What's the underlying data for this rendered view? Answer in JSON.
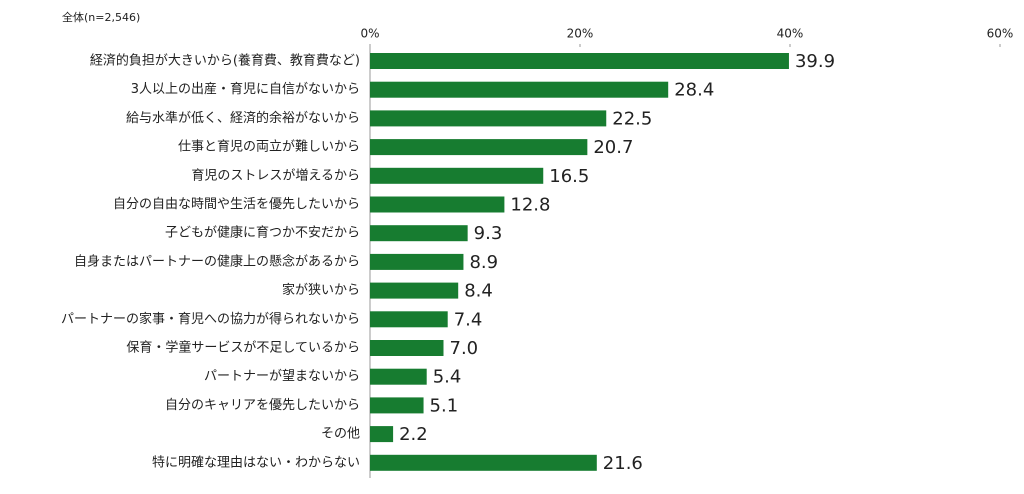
{
  "chart_data": {
    "type": "barh",
    "subtitle": "全体(n=2,546)",
    "categories": [
      "経済的負担が大きいから(養育費、教育費など)",
      "3人以上の出産・育児に自信がないから",
      "給与水準が低く、経済的余裕がないから",
      "仕事と育児の両立が難しいから",
      "育児のストレスが増えるから",
      "自分の自由な時間や生活を優先したいから",
      "子どもが健康に育つか不安だから",
      "自身またはパートナーの健康上の懸念があるから",
      "家が狭いから",
      "パートナーの家事・育児への協力が得られないから",
      "保育・学童サービスが不足しているから",
      "パートナーが望まないから",
      "自分のキャリアを優先したいから",
      "その他",
      "特に明確な理由はない・わからない"
    ],
    "values": [
      39.9,
      28.4,
      22.5,
      20.7,
      16.5,
      12.8,
      9.3,
      8.9,
      8.4,
      7.4,
      7.0,
      5.4,
      5.1,
      2.2,
      21.6
    ],
    "value_labels": [
      "39.9",
      "28.4",
      "22.5",
      "20.7",
      "16.5",
      "12.8",
      "9.3",
      "8.9",
      "8.4",
      "7.4",
      "7.0",
      "5.4",
      "5.1",
      "2.2",
      "21.6"
    ],
    "color": "#177c30",
    "xlim": [
      0,
      60
    ],
    "xticks": [
      {
        "value": 0,
        "label": "0%"
      },
      {
        "value": 20,
        "label": "20%"
      },
      {
        "value": 40,
        "label": "40%"
      },
      {
        "value": 60,
        "label": "60%"
      }
    ]
  }
}
